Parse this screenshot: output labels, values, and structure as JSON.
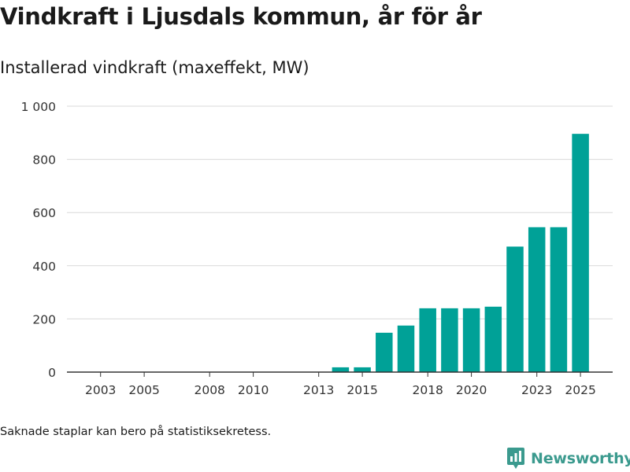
{
  "title": "Vindkraft i Ljusdals kommun, år för år",
  "subtitle": "Installerad vindkraft (maxeffekt, MW)",
  "footnote": "Saknade staplar kan bero på statistiksekretess.",
  "brand": {
    "name": "Newsworthy",
    "color": "#3b9a8e"
  },
  "colors": {
    "bar": "#00a197",
    "grid": "#d9d9d9",
    "axis": "#333333"
  },
  "chart_data": {
    "type": "bar",
    "categories": [
      "2002",
      "2003",
      "2004",
      "2005",
      "2006",
      "2007",
      "2008",
      "2009",
      "2010",
      "2011",
      "2012",
      "2013",
      "2014",
      "2015",
      "2016",
      "2017",
      "2018",
      "2019",
      "2020",
      "2021",
      "2022",
      "2023",
      "2024",
      "2025"
    ],
    "values": [
      0,
      0,
      0,
      0,
      0,
      0,
      0,
      0,
      0,
      0,
      0,
      0,
      18,
      18,
      148,
      175,
      240,
      240,
      240,
      246,
      472,
      545,
      545,
      896
    ],
    "x_tick_labels": [
      "2003",
      "2005",
      "2008",
      "2010",
      "2013",
      "2015",
      "2018",
      "2020",
      "2023",
      "2025"
    ],
    "y_ticks": [
      0,
      200,
      400,
      600,
      800,
      1000
    ],
    "y_tick_labels": [
      "0",
      "200",
      "400",
      "600",
      "800",
      "1 000"
    ],
    "ylim": [
      0,
      1000
    ],
    "grid": true,
    "legend": "none",
    "title": "Vindkraft i Ljusdals kommun, år för år",
    "ylabel": "Installerad vindkraft (maxeffekt, MW)",
    "xlabel": ""
  }
}
